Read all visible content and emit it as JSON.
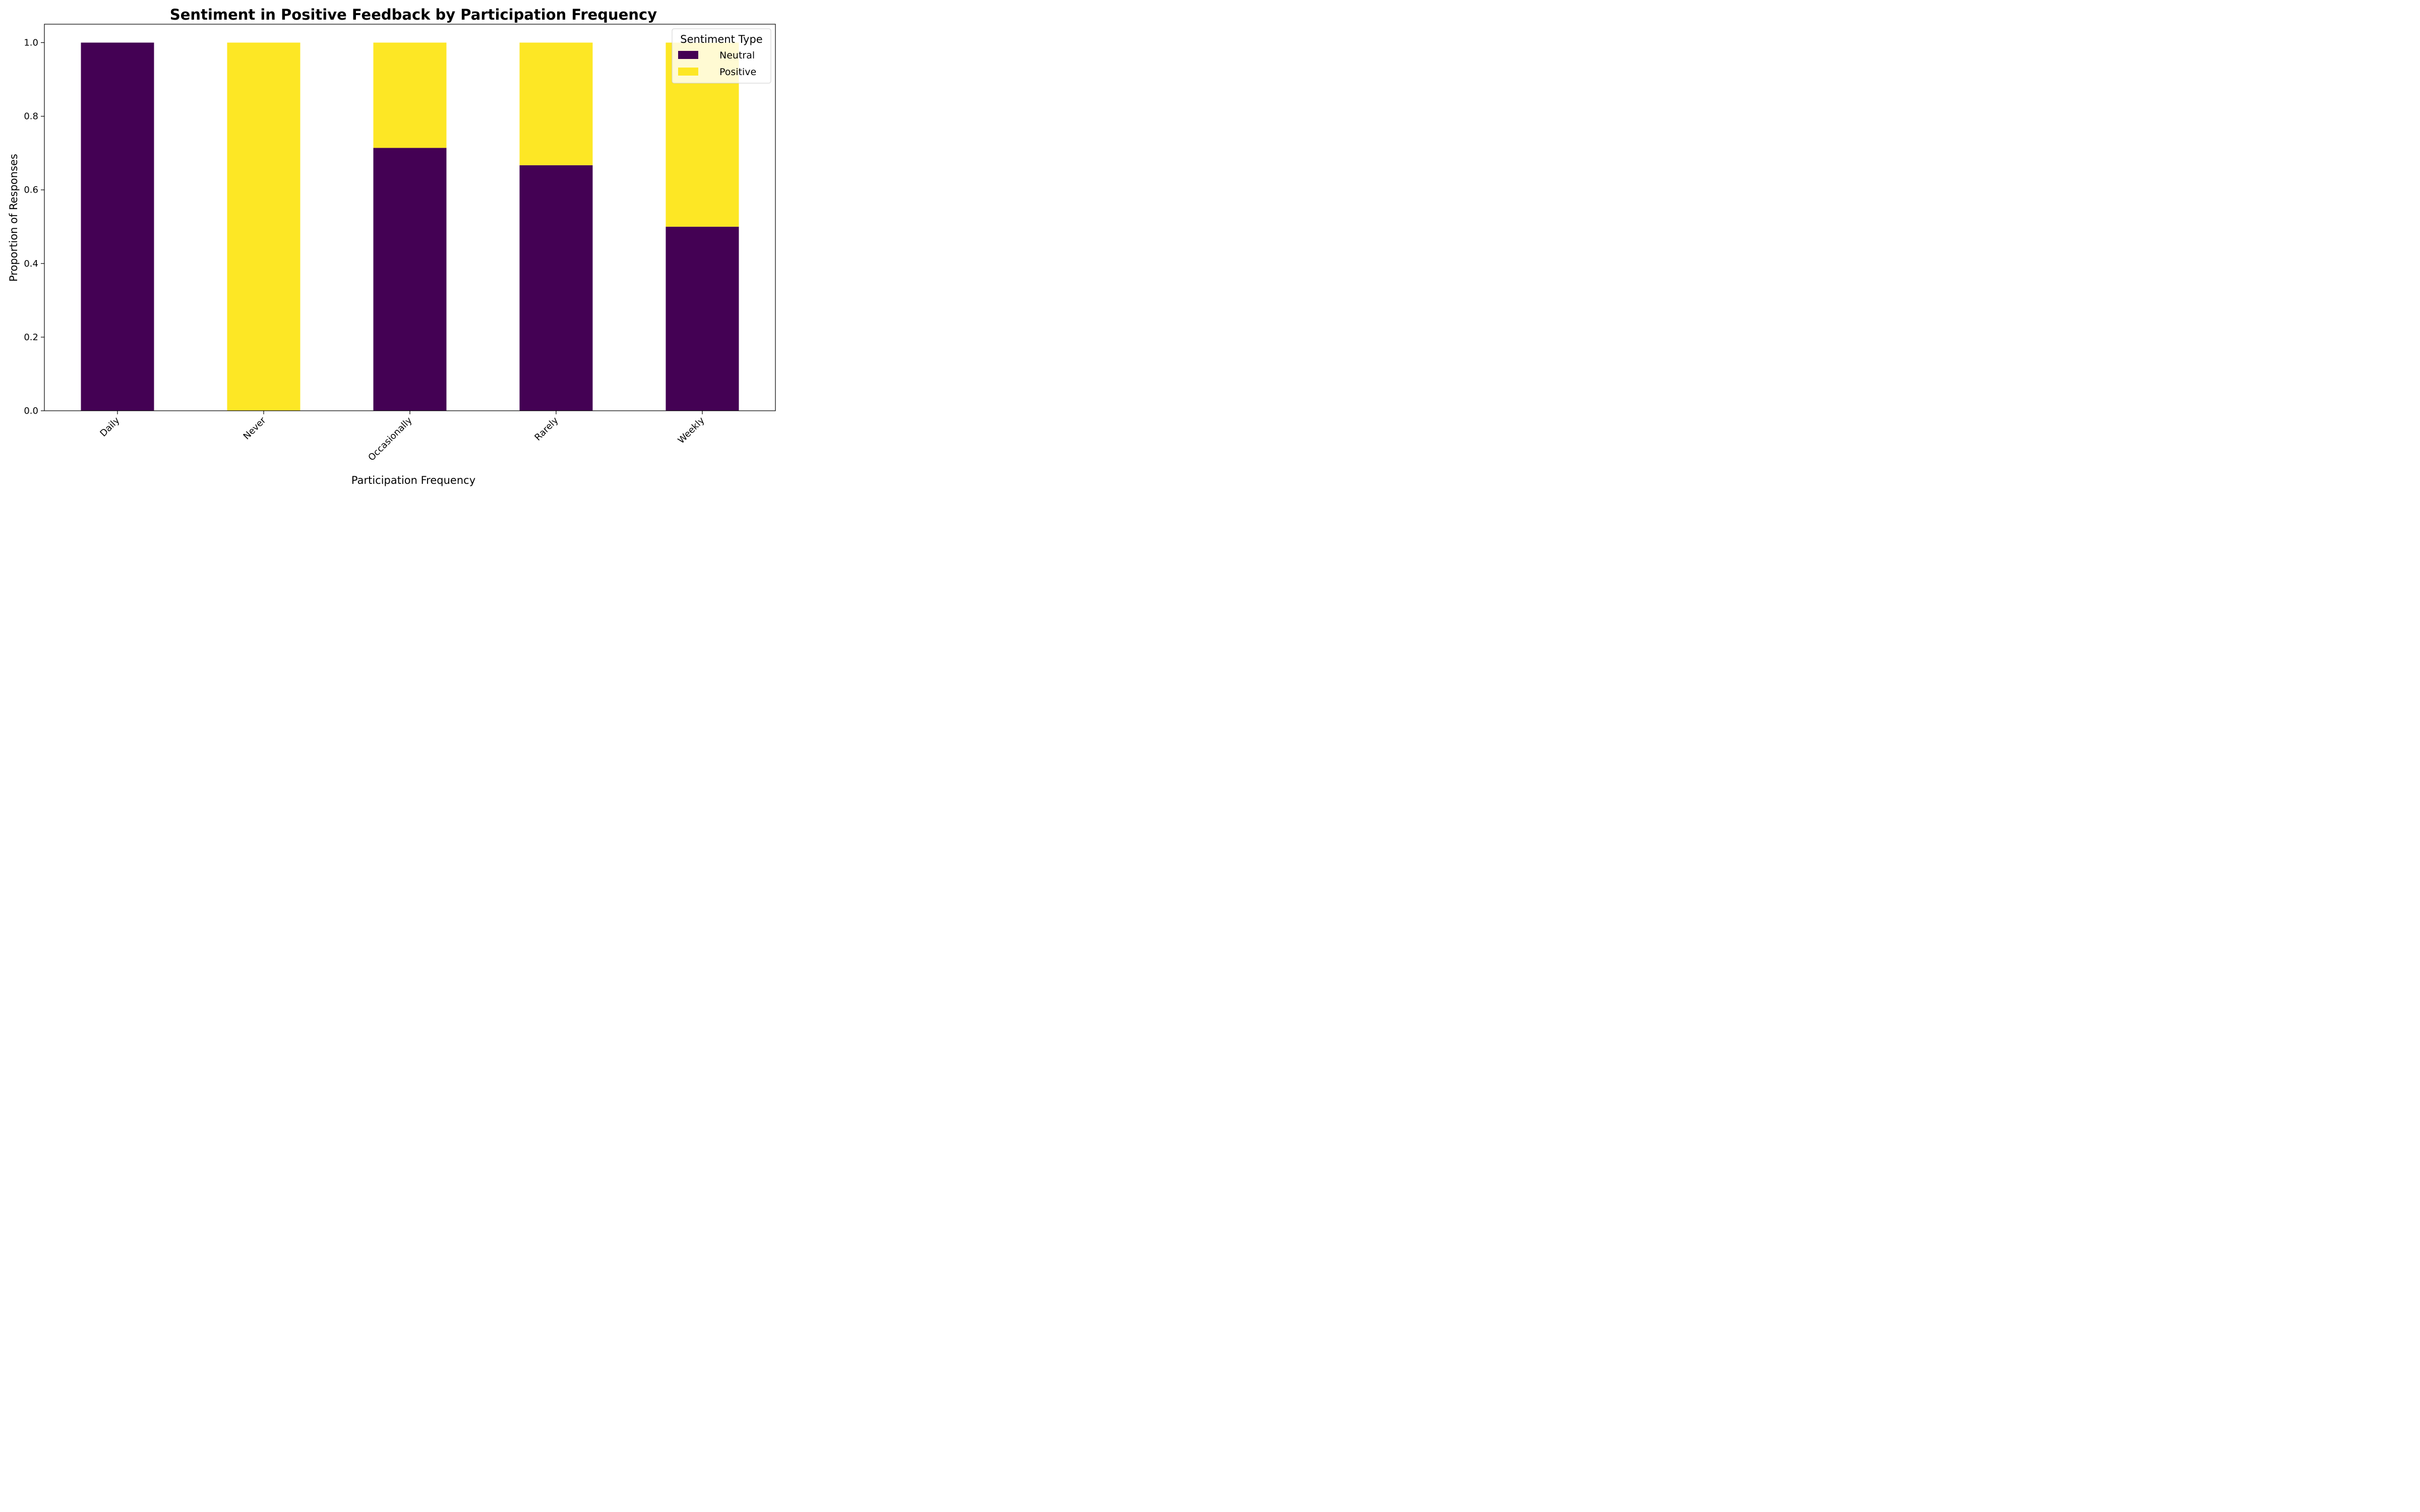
{
  "chart_data": {
    "type": "bar",
    "stacked": true,
    "title": "Sentiment in Positive Feedback by Participation Frequency",
    "xlabel": "Participation Frequency",
    "ylabel": "Proportion of Responses",
    "categories": [
      "Daily",
      "Never",
      "Occasionally",
      "Rarely",
      "Weekly"
    ],
    "series": [
      {
        "name": "Neutral",
        "color": "#440154",
        "values": [
          1.0,
          0.0,
          0.714,
          0.667,
          0.5
        ]
      },
      {
        "name": "Positive",
        "color": "#fde725",
        "values": [
          0.0,
          1.0,
          0.286,
          0.333,
          0.5
        ]
      }
    ],
    "ylim": [
      0,
      1.05
    ],
    "yticks": [
      "0.0",
      "0.2",
      "0.4",
      "0.6",
      "0.8",
      "1.0"
    ],
    "grid": false,
    "legend": {
      "title": "Sentiment Type",
      "placement": "top-right"
    }
  }
}
